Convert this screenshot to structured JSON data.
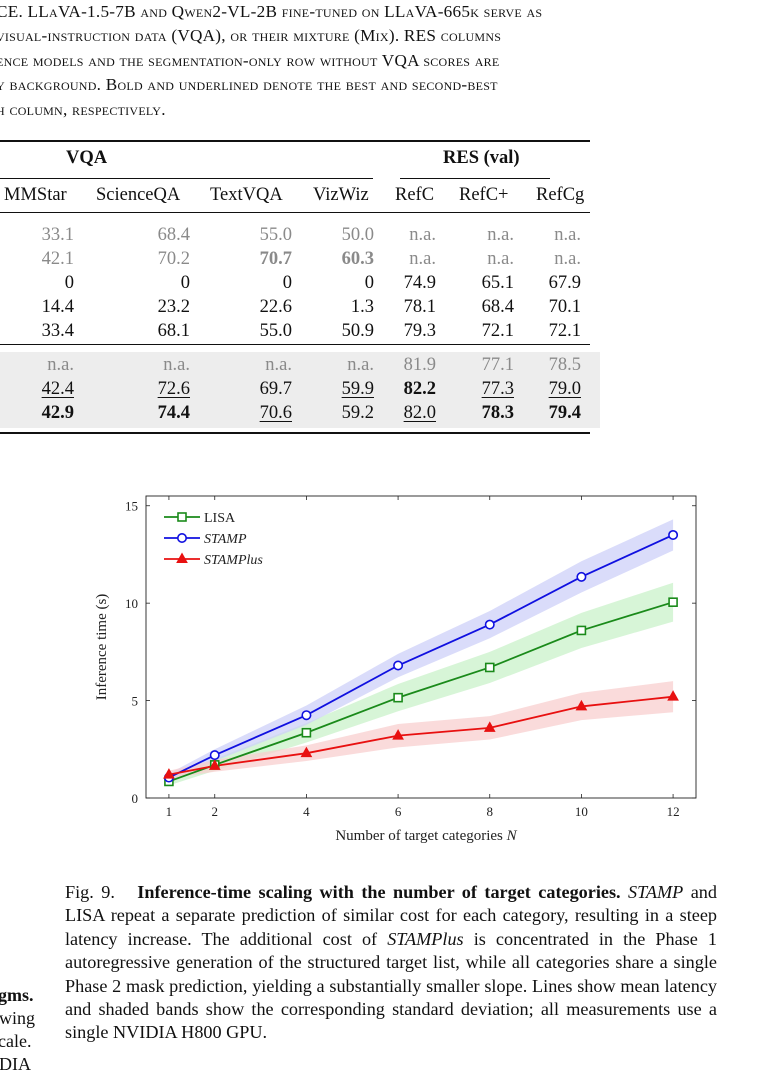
{
  "top_caption": {
    "lines": [
      [
        "CE. LLaVA-1.5-7B and Qwen2-VL-2B fine-tuned on LLaVA-665k serve as"
      ],
      [
        "visual-instruction data (VQA), or their mixture (Mix). RES columns"
      ],
      [
        "ence models and the segmentation-only row without VQA scores are"
      ],
      [
        "y background. Bold and underlined denote the best and second-best"
      ],
      [
        "h column, respectively."
      ]
    ]
  },
  "table": {
    "group_headers": {
      "vqa": "VQA",
      "res": "RES (val)"
    },
    "columns": [
      "MMStar",
      "ScienceQA",
      "TextVQA",
      "VizWiz",
      "RefC",
      "RefC+",
      "RefCg"
    ],
    "rows": [
      {
        "cells": [
          "33.1",
          "68.4",
          "55.0",
          "50.0",
          "n.a.",
          "n.a.",
          "n.a."
        ],
        "style": [
          "g",
          "g",
          "g",
          "g",
          "g",
          "g",
          "g"
        ]
      },
      {
        "cells": [
          "42.1",
          "70.2",
          "70.7",
          "60.3",
          "n.a.",
          "n.a.",
          "n.a."
        ],
        "style": [
          "g",
          "g",
          "gb",
          "gb",
          "g",
          "g",
          "g"
        ]
      },
      {
        "cells": [
          "0",
          "0",
          "0",
          "0",
          "74.9",
          "65.1",
          "67.9"
        ],
        "style": [
          "",
          "",
          "",
          "",
          "",
          "",
          ""
        ]
      },
      {
        "cells": [
          "14.4",
          "23.2",
          "22.6",
          "1.3",
          "78.1",
          "68.4",
          "70.1"
        ],
        "style": [
          "",
          "",
          "",
          "",
          "",
          "",
          ""
        ]
      },
      {
        "cells": [
          "33.4",
          "68.1",
          "55.0",
          "50.9",
          "79.3",
          "72.1",
          "72.1"
        ],
        "style": [
          "",
          "",
          "",
          "",
          "",
          "",
          ""
        ]
      },
      {
        "cells": [
          "n.a.",
          "n.a.",
          "n.a.",
          "n.a.",
          "81.9",
          "77.1",
          "78.5"
        ],
        "style": [
          "g",
          "g",
          "g",
          "g",
          "g",
          "g",
          "g"
        ]
      },
      {
        "cells": [
          "42.4",
          "72.6",
          "69.7",
          "59.9",
          "82.2",
          "77.3",
          "79.0"
        ],
        "style": [
          "u",
          "u",
          "",
          "u",
          "b",
          "u",
          "u"
        ]
      },
      {
        "cells": [
          "42.9",
          "74.4",
          "70.6",
          "59.2",
          "82.0",
          "78.3",
          "79.4"
        ],
        "style": [
          "b",
          "b",
          "u",
          "",
          "u",
          "b",
          "b"
        ]
      }
    ]
  },
  "chart_data": {
    "type": "line",
    "xlabel": "Number of target categories N",
    "ylabel": "Inference time (s)",
    "xlim": [
      0.5,
      12.5
    ],
    "ylim": [
      0,
      15.5
    ],
    "xticks": [
      1,
      2,
      4,
      6,
      8,
      10,
      12
    ],
    "yticks": [
      0,
      5,
      10,
      15
    ],
    "legend_position": "top-left",
    "grid": false,
    "x": [
      1,
      2,
      4,
      6,
      8,
      10,
      12
    ],
    "series": [
      {
        "name": "LISA",
        "color": "#1a8a1a",
        "band_color": "#c9f2c9",
        "marker": "square",
        "values": [
          0.85,
          1.7,
          3.35,
          5.15,
          6.7,
          8.6,
          10.05
        ],
        "std": [
          0.2,
          0.3,
          0.5,
          0.7,
          0.8,
          0.9,
          1.0
        ]
      },
      {
        "name": "STAMP",
        "color": "#1010e0",
        "band_color": "#cdd0f8",
        "marker": "circle",
        "values": [
          1.05,
          2.2,
          4.25,
          6.8,
          8.9,
          11.35,
          13.5
        ],
        "std": [
          0.2,
          0.3,
          0.5,
          0.6,
          0.7,
          0.8,
          0.8
        ]
      },
      {
        "name": "STAMPlus",
        "color": "#e81010",
        "band_color": "#f8cfcf",
        "marker": "triangle",
        "values": [
          1.2,
          1.65,
          2.3,
          3.2,
          3.6,
          4.7,
          5.2
        ],
        "std": [
          0.2,
          0.3,
          0.4,
          0.6,
          0.6,
          0.7,
          0.8
        ]
      }
    ]
  },
  "figure_caption": {
    "prefix": "Fig. 9.",
    "title": "Inference-time scaling with the number of target categories.",
    "part1_italic": "STAMP",
    "part2": " and LISA repeat a separate prediction of similar cost for each category, resulting in a steep latency increase. The additional cost of ",
    "part3_italic": "STAMPlus",
    "part4": " is concentrated in the Phase 1 autoregressive generation of the structured target list, while all categories share a single Phase 2 mask prediction, yielding a substantially smaller slope. Lines show mean latency and shaded bands show the corresponding standard deviation; all measurements use a single NVIDIA H800 GPU."
  },
  "left_fragments": [
    "gms.",
    "wing",
    "cale.",
    "DIA"
  ]
}
